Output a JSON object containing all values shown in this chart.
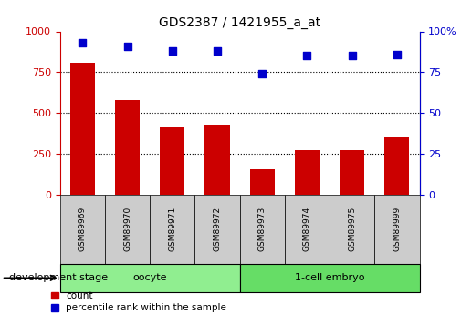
{
  "title": "GDS2387 / 1421955_a_at",
  "samples": [
    "GSM89969",
    "GSM89970",
    "GSM89971",
    "GSM89972",
    "GSM89973",
    "GSM89974",
    "GSM89975",
    "GSM89999"
  ],
  "counts": [
    810,
    580,
    420,
    430,
    155,
    270,
    275,
    350
  ],
  "percentiles": [
    93,
    91,
    88,
    88,
    74,
    85,
    85,
    86
  ],
  "groups": [
    {
      "label": "oocyte",
      "indices": [
        0,
        1,
        2,
        3
      ],
      "color": "#90EE90"
    },
    {
      "label": "1-cell embryo",
      "indices": [
        4,
        5,
        6,
        7
      ],
      "color": "#66DD66"
    }
  ],
  "bar_color": "#CC0000",
  "dot_color": "#0000CC",
  "ylim_left": [
    0,
    1000
  ],
  "ylim_right": [
    0,
    100
  ],
  "yticks_left": [
    0,
    250,
    500,
    750,
    1000
  ],
  "yticks_right": [
    0,
    25,
    50,
    75,
    100
  ],
  "grid_lines": [
    250,
    500,
    750
  ],
  "background_color": "#ffffff",
  "tick_area_color": "#cccccc",
  "legend_count_label": "count",
  "legend_pct_label": "percentile rank within the sample",
  "dev_stage_label": "development stage",
  "bar_width": 0.55
}
